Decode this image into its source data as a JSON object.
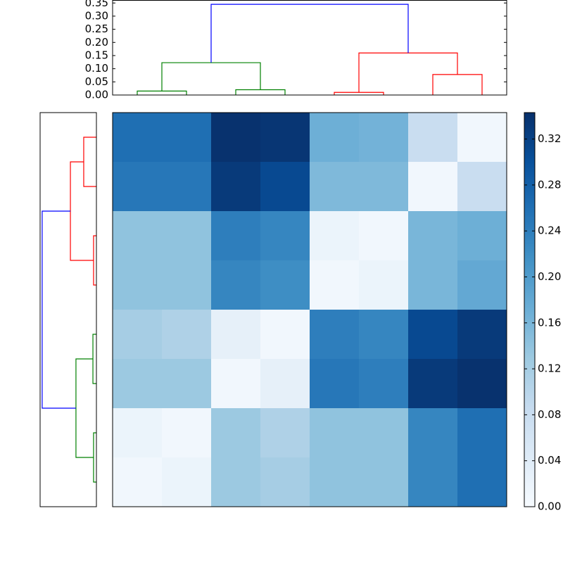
{
  "chart_data": [
    {
      "type": "dendrogram",
      "orientation": "top",
      "xlim": [
        0,
        80
      ],
      "ylim": [
        0,
        0.36
      ],
      "yticks": [
        {
          "value": 0,
          "label": "0.00"
        },
        {
          "value": 0.05,
          "label": "0.05"
        },
        {
          "value": 0.1,
          "label": "0.10"
        },
        {
          "value": 0.15,
          "label": "0.15"
        },
        {
          "value": 0.2,
          "label": "0.20"
        },
        {
          "value": 0.25,
          "label": "0.25"
        },
        {
          "value": 0.3,
          "label": "0.30"
        },
        {
          "value": 0.35,
          "label": "0.35"
        }
      ],
      "links": [
        {
          "x": [
            5,
            5,
            15,
            15
          ],
          "y": [
            0,
            0.015,
            0.015,
            0
          ],
          "color": "#008000"
        },
        {
          "x": [
            25,
            25,
            35,
            35
          ],
          "y": [
            0,
            0.02,
            0.02,
            0
          ],
          "color": "#008000"
        },
        {
          "x": [
            10,
            10,
            30,
            30
          ],
          "y": [
            0.015,
            0.123,
            0.123,
            0.02
          ],
          "color": "#008000"
        },
        {
          "x": [
            45,
            45,
            55,
            55
          ],
          "y": [
            0,
            0.01,
            0.01,
            0
          ],
          "color": "#ff0000"
        },
        {
          "x": [
            65,
            65,
            75,
            75
          ],
          "y": [
            0,
            0.078,
            0.078,
            0
          ],
          "color": "#ff0000"
        },
        {
          "x": [
            50,
            50,
            70,
            70
          ],
          "y": [
            0.01,
            0.16,
            0.16,
            0.078
          ],
          "color": "#ff0000"
        },
        {
          "x": [
            20,
            20,
            60,
            60
          ],
          "y": [
            0.123,
            0.345,
            0.345,
            0.16
          ],
          "color": "#0000ff"
        }
      ]
    },
    {
      "type": "dendrogram",
      "orientation": "left",
      "xlim": [
        0,
        80
      ],
      "ylim": [
        0,
        0.355
      ],
      "links": [
        {
          "x": [
            5,
            5,
            15,
            15
          ],
          "y": [
            0,
            0.08,
            0.08,
            0
          ],
          "color": "#ff0000"
        },
        {
          "x": [
            25,
            25,
            35,
            35
          ],
          "y": [
            0,
            0.018,
            0.018,
            0
          ],
          "color": "#ff0000"
        },
        {
          "x": [
            10,
            10,
            30,
            30
          ],
          "y": [
            0.08,
            0.164,
            0.164,
            0.018
          ],
          "color": "#ff0000"
        },
        {
          "x": [
            45,
            45,
            55,
            55
          ],
          "y": [
            0,
            0.022,
            0.022,
            0
          ],
          "color": "#008000"
        },
        {
          "x": [
            65,
            65,
            75,
            75
          ],
          "y": [
            0,
            0.018,
            0.018,
            0
          ],
          "color": "#008000"
        },
        {
          "x": [
            50,
            50,
            70,
            70
          ],
          "y": [
            0.022,
            0.129,
            0.129,
            0.018
          ],
          "color": "#008000"
        },
        {
          "x": [
            20,
            20,
            60,
            60
          ],
          "y": [
            0.164,
            0.342,
            0.342,
            0.129
          ],
          "color": "#0000ff"
        }
      ]
    },
    {
      "type": "heatmap",
      "clim": [
        0,
        0.343
      ],
      "colormap": [
        "#f7fbff",
        "#deebf7",
        "#c6dbef",
        "#9ecae1",
        "#6baed6",
        "#4292c6",
        "#2171b5",
        "#08519c",
        "#08306b"
      ],
      "cticks": [
        {
          "value": 0,
          "label": "0.00"
        },
        {
          "value": 0.04,
          "label": "0.04"
        },
        {
          "value": 0.08,
          "label": "0.08"
        },
        {
          "value": 0.12,
          "label": "0.12"
        },
        {
          "value": 0.16,
          "label": "0.16"
        },
        {
          "value": 0.2,
          "label": "0.20"
        },
        {
          "value": 0.24,
          "label": "0.24"
        },
        {
          "value": 0.28,
          "label": "0.28"
        },
        {
          "value": 0.32,
          "label": "0.32"
        }
      ],
      "values": [
        [
          0.26,
          0.26,
          0.34,
          0.335,
          0.17,
          0.165,
          0.08,
          0.01
        ],
        [
          0.25,
          0.25,
          0.33,
          0.31,
          0.155,
          0.155,
          0.01,
          0.08
        ],
        [
          0.14,
          0.14,
          0.24,
          0.23,
          0.02,
          0.01,
          0.16,
          0.17
        ],
        [
          0.14,
          0.14,
          0.23,
          0.22,
          0.01,
          0.02,
          0.16,
          0.18
        ],
        [
          0.12,
          0.11,
          0.03,
          0.01,
          0.24,
          0.23,
          0.31,
          0.33
        ],
        [
          0.13,
          0.13,
          0.01,
          0.03,
          0.25,
          0.24,
          0.33,
          0.34
        ],
        [
          0.02,
          0.01,
          0.13,
          0.11,
          0.14,
          0.14,
          0.23,
          0.26
        ],
        [
          0.01,
          0.02,
          0.13,
          0.12,
          0.14,
          0.14,
          0.23,
          0.26
        ]
      ]
    }
  ]
}
